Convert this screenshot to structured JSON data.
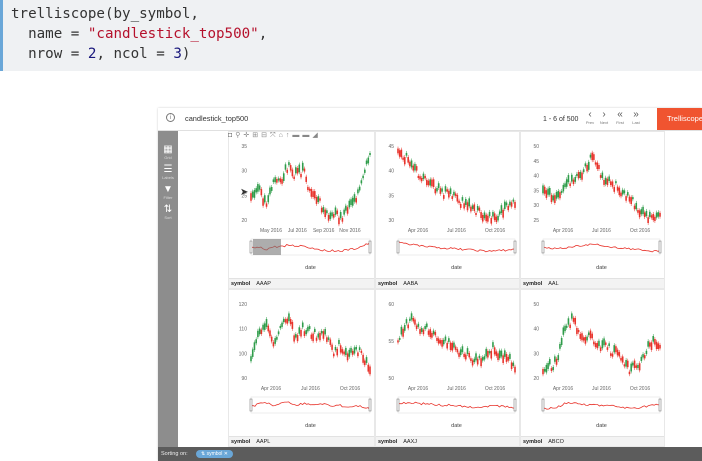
{
  "code": {
    "line1": "trelliscope(by_symbol,",
    "line2_key": "name = ",
    "line2_str": "\"candlestick_top500\"",
    "line2_end": ",",
    "line3_key": "nrow = ",
    "line3_n1": "2",
    "line3_mid": ", ncol = ",
    "line3_n2": "3",
    "line3_end": ")"
  },
  "viewer": {
    "title": "candlestick_top500",
    "pagination": "1 - 6 of 500",
    "nav": [
      {
        "glyph": "‹",
        "label": "Prev"
      },
      {
        "glyph": "›",
        "label": "Next"
      },
      {
        "glyph": "«",
        "label": "First"
      },
      {
        "glyph": "»",
        "label": "Last"
      }
    ],
    "brand": "Trelliscope",
    "sidebar": [
      {
        "glyph": "▦",
        "label": "Grid"
      },
      {
        "glyph": "☰",
        "label": "Labels"
      },
      {
        "glyph": "▼",
        "label": "Filter"
      },
      {
        "glyph": "⇅",
        "label": "Sort"
      }
    ],
    "footer_label": "Sorting on:",
    "sort_pill": "⇅ symbol ✕",
    "colors": {
      "increasing": "#2f9c4a",
      "decreasing": "#e8332b",
      "brand": "#f05430",
      "pill": "#6aa7d8"
    }
  },
  "panels": [
    {
      "symbol": "AAAP",
      "key": "symbol",
      "xlabel": "date",
      "xticks": [
        "May 2016",
        "Jul 2016",
        "Sep 2016",
        "Nov 2016"
      ],
      "yticks": [
        "35",
        "30",
        "25",
        "20"
      ],
      "shape": "aaap"
    },
    {
      "symbol": "AABA",
      "key": "symbol",
      "xlabel": "date",
      "xticks": [
        "Apr 2016",
        "Jul 2016",
        "Oct 2016"
      ],
      "yticks": [
        "45",
        "40",
        "35",
        "30"
      ],
      "shape": "aaba"
    },
    {
      "symbol": "AAL",
      "key": "symbol",
      "xlabel": "date",
      "xticks": [
        "Apr 2016",
        "Jul 2016",
        "Oct 2016"
      ],
      "yticks": [
        "50",
        "45",
        "40",
        "35",
        "30",
        "25"
      ],
      "shape": "aal"
    },
    {
      "symbol": "AAPL",
      "key": "symbol",
      "xlabel": "date",
      "xticks": [
        "Apr 2016",
        "Jul 2016",
        "Oct 2016"
      ],
      "yticks": [
        "120",
        "110",
        "100",
        "90"
      ],
      "shape": "aapl"
    },
    {
      "symbol": "AAXJ",
      "key": "symbol",
      "xlabel": "date",
      "xticks": [
        "Apr 2016",
        "Jul 2016",
        "Oct 2016"
      ],
      "yticks": [
        "60",
        "55",
        "50"
      ],
      "shape": "aaxj"
    },
    {
      "symbol": "ABCO",
      "key": "symbol",
      "xlabel": "date",
      "xticks": [
        "Apr 2016",
        "Jul 2016",
        "Oct 2016"
      ],
      "yticks": [
        "50",
        "40",
        "30",
        "20"
      ],
      "shape": "abco"
    }
  ],
  "modebar": [
    "camera-icon",
    "zoom-icon",
    "pan-icon",
    "zoom-in-icon",
    "zoom-out-icon",
    "autoscale-icon",
    "reset-icon",
    "spike-icon",
    "hover-icon",
    "compare-icon",
    "plotly-logo-icon"
  ]
}
